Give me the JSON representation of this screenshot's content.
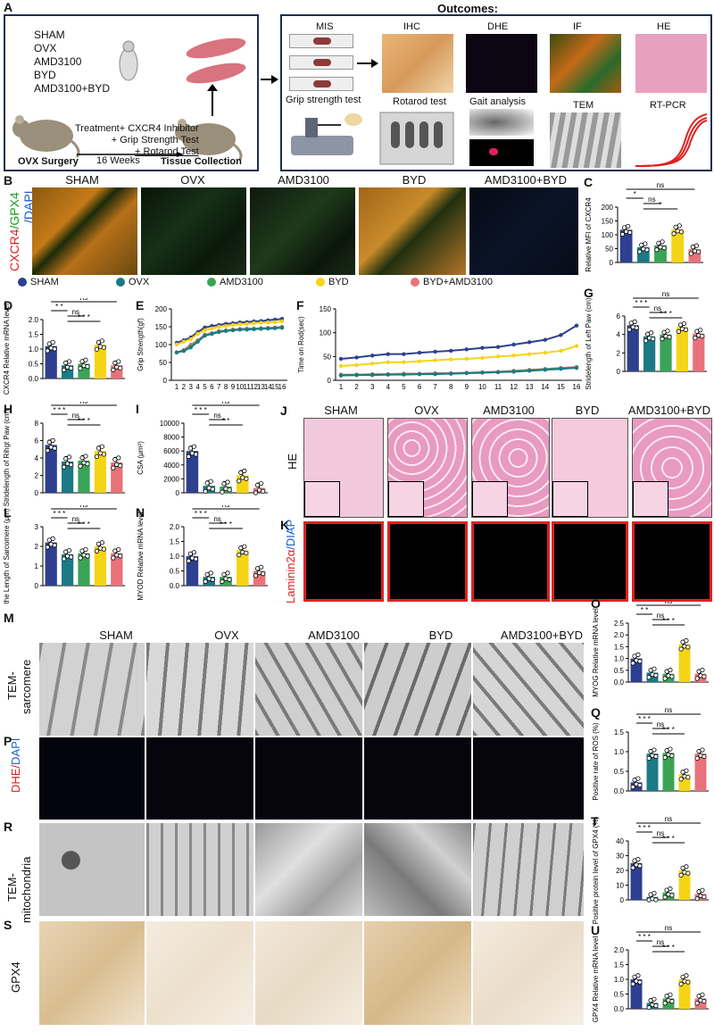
{
  "panels": {
    "A": "A",
    "B": "B",
    "C": "C",
    "D": "D",
    "E": "E",
    "F": "F",
    "G": "G",
    "H": "H",
    "I": "I",
    "J": "J",
    "K": "K",
    "L": "L",
    "M": "M",
    "N": "N",
    "O": "O",
    "P": "P",
    "Q": "Q",
    "R": "R",
    "S": "S",
    "T": "T",
    "U": "U"
  },
  "panelA": {
    "outcomes_title": "Outcomes:",
    "groups": [
      "SHAM",
      "OVX",
      "AMD3100",
      "BYD",
      "AMD3100+BYD"
    ],
    "treatment": "Treatment+ CXCR4 Inhibitor",
    "grip": "+ Grip Strength Test",
    "rotarod": "+ Rotarod Test",
    "weeks": "16 Weeks",
    "ovx_surgery": "OVX Surgery",
    "tissue": "Tissue Collection",
    "outcome_labels": [
      "MIS",
      "IHC",
      "DHE",
      "IF",
      "HE",
      "Grip strength test",
      "Rotarod test",
      "Gait analysis",
      "TEM",
      "RT-PCR"
    ]
  },
  "groups": [
    "SHAM",
    "OVX",
    "AMD3100",
    "BYD",
    "AMD3100+BYD"
  ],
  "legend": {
    "items": [
      {
        "name": "SHAM",
        "color": "#2e3f8f"
      },
      {
        "name": "OVX",
        "color": "#1a7a85"
      },
      {
        "name": "AMD3100",
        "color": "#3aa356"
      },
      {
        "name": "BYD",
        "color": "#f5d416"
      },
      {
        "name": "BYD+AMD3100",
        "color": "#e8727a"
      }
    ]
  },
  "rowlabels": {
    "B_red": "CXCR4",
    "B_green": "/GPX4",
    "B_blue": "/DAPI",
    "HE": "HE",
    "K_red": "Laminin2α",
    "K_blue": "/DIAP",
    "M": "TEM-",
    "M2": "sarcomere",
    "P_red": "DHE/",
    "P_blue": "DAPI",
    "R1": "TEM-",
    "R2": "mitochondria",
    "S": "GPX4"
  },
  "chart_data": [
    {
      "panel": "C",
      "type": "bar",
      "ylabel": "Relative MFI of CXCR4",
      "categories": [
        "SHAM",
        "OVX",
        "AMD3100",
        "BYD",
        "AMD3100+BYD"
      ],
      "values": [
        118,
        55,
        62,
        120,
        48
      ],
      "ylim": [
        0,
        200
      ],
      "ticks": [
        "0",
        "50",
        "100",
        "150",
        "200"
      ],
      "sig": [
        {
          "a": 0,
          "b": 1,
          "t": "*"
        },
        {
          "a": 1,
          "b": 2,
          "t": "ns"
        },
        {
          "a": 1,
          "b": 3,
          "t": "*"
        },
        {
          "a": 0,
          "b": 4,
          "t": "ns"
        }
      ]
    },
    {
      "panel": "D",
      "type": "bar",
      "ylabel": "CXCR4 Relative mRNA level",
      "categories": [
        "SHAM",
        "OVX",
        "AMD3100",
        "BYD",
        "AMD3100+BYD"
      ],
      "values": [
        1.1,
        0.45,
        0.5,
        1.15,
        0.45
      ],
      "ylim": [
        0,
        2.0
      ],
      "ticks": [
        "0.0",
        "0.5",
        "1.0",
        "1.5",
        "2.0"
      ],
      "sig": [
        {
          "a": 0,
          "b": 1,
          "t": "* *"
        },
        {
          "a": 1,
          "b": 2,
          "t": "ns"
        },
        {
          "a": 1,
          "b": 3,
          "t": "* * *"
        },
        {
          "a": 0,
          "b": 4,
          "t": "ns"
        }
      ]
    },
    {
      "panel": "E",
      "type": "line",
      "ylabel": "Grip Strength(gf)",
      "x": [
        1,
        2,
        3,
        4,
        5,
        6,
        7,
        8,
        9,
        10,
        11,
        12,
        13,
        14,
        15,
        16
      ],
      "ylim": [
        0,
        200
      ],
      "ticks": [
        "0",
        "50",
        "100",
        "150",
        "200"
      ],
      "series": [
        {
          "color": "#2e3f8f",
          "values": [
            105,
            112,
            120,
            135,
            148,
            152,
            155,
            158,
            160,
            162,
            163,
            165,
            166,
            168,
            170,
            172
          ]
        },
        {
          "color": "#f5d416",
          "values": [
            100,
            108,
            115,
            130,
            140,
            145,
            150,
            152,
            155,
            157,
            158,
            160,
            161,
            162,
            163,
            165
          ]
        },
        {
          "color": "#e8727a",
          "values": [
            78,
            85,
            100,
            112,
            128,
            132,
            138,
            140,
            142,
            144,
            145,
            145,
            146,
            147,
            148,
            150
          ]
        },
        {
          "color": "#3aa356",
          "values": [
            78,
            83,
            95,
            110,
            126,
            130,
            136,
            139,
            141,
            142,
            143,
            144,
            145,
            145,
            146,
            148
          ]
        },
        {
          "color": "#1a7a85",
          "values": [
            78,
            82,
            92,
            108,
            125,
            130,
            135,
            138,
            140,
            142,
            142,
            143,
            144,
            145,
            146,
            147
          ]
        }
      ]
    },
    {
      "panel": "F",
      "type": "line",
      "ylabel": "Time on Rod(sec)",
      "x": [
        1,
        2,
        3,
        4,
        5,
        6,
        7,
        8,
        9,
        10,
        11,
        12,
        13,
        14,
        15,
        16
      ],
      "ylim": [
        0,
        150
      ],
      "ticks": [
        "0",
        "50",
        "100",
        "150"
      ],
      "series": [
        {
          "color": "#2e3f8f",
          "values": [
            45,
            48,
            52,
            55,
            55,
            58,
            60,
            62,
            65,
            68,
            70,
            75,
            80,
            85,
            95,
            115
          ]
        },
        {
          "color": "#f5d416",
          "values": [
            30,
            32,
            35,
            38,
            38,
            40,
            42,
            44,
            45,
            47,
            50,
            52,
            55,
            58,
            62,
            72
          ]
        },
        {
          "color": "#e8727a",
          "values": [
            12,
            12,
            13,
            13,
            14,
            14,
            15,
            15,
            16,
            17,
            18,
            20,
            22,
            24,
            26,
            28
          ]
        },
        {
          "color": "#3aa356",
          "values": [
            11,
            11,
            12,
            12,
            13,
            13,
            14,
            14,
            15,
            16,
            17,
            19,
            21,
            23,
            25,
            27
          ]
        },
        {
          "color": "#1a7a85",
          "values": [
            10,
            11,
            11,
            12,
            12,
            13,
            13,
            14,
            15,
            16,
            17,
            18,
            20,
            22,
            24,
            26
          ]
        }
      ]
    },
    {
      "panel": "G",
      "type": "bar",
      "ylabel": "Stridelength of Left Paw (cm)",
      "categories": [
        "SHAM",
        "OVX",
        "AMD3100",
        "BYD",
        "AMD3100+BYD"
      ],
      "values": [
        5.0,
        3.8,
        4.0,
        4.8,
        4.1
      ],
      "ylim": [
        0,
        6
      ],
      "ticks": [
        "0",
        "2",
        "4",
        "6"
      ],
      "sig": [
        {
          "a": 0,
          "b": 1,
          "t": "* * *"
        },
        {
          "a": 1,
          "b": 2,
          "t": "ns"
        },
        {
          "a": 1,
          "b": 3,
          "t": "* * *"
        },
        {
          "a": 0,
          "b": 4,
          "t": "ns"
        }
      ]
    },
    {
      "panel": "H",
      "type": "bar",
      "ylabel": "Stridelength of Rihgt Paw (cm)",
      "categories": [
        "SHAM",
        "OVX",
        "AMD3100",
        "BYD",
        "AMD3100+BYD"
      ],
      "values": [
        5.5,
        3.6,
        3.7,
        4.8,
        3.5
      ],
      "ylim": [
        0,
        8
      ],
      "ticks": [
        "0",
        "2",
        "4",
        "6",
        "8"
      ],
      "sig": [
        {
          "a": 0,
          "b": 1,
          "t": "* * *"
        },
        {
          "a": 1,
          "b": 2,
          "t": "ns"
        },
        {
          "a": 1,
          "b": 3,
          "t": "* * *"
        },
        {
          "a": 0,
          "b": 4,
          "t": "ns"
        }
      ]
    },
    {
      "panel": "I",
      "type": "bar",
      "ylabel": "CSA (μm²)",
      "categories": [
        "SHAM",
        "OVX",
        "AMD3100",
        "BYD",
        "AMD3100+BYD"
      ],
      "values": [
        6000,
        1000,
        900,
        2500,
        700
      ],
      "ylim": [
        0,
        10000
      ],
      "ticks": [
        "0",
        "2000",
        "4000",
        "6000",
        "8000",
        "10000"
      ],
      "sig": [
        {
          "a": 0,
          "b": 1,
          "t": "* * *"
        },
        {
          "a": 1,
          "b": 2,
          "t": "ns"
        },
        {
          "a": 1,
          "b": 3,
          "t": "* *"
        },
        {
          "a": 0,
          "b": 4,
          "t": "ns"
        }
      ]
    },
    {
      "panel": "L",
      "type": "bar",
      "ylabel": "the Length of Sarcomere (μm)",
      "categories": [
        "SHAM",
        "OVX",
        "AMD3100",
        "BYD",
        "AMD3100+BYD"
      ],
      "values": [
        2.2,
        1.6,
        1.65,
        2.0,
        1.65
      ],
      "ylim": [
        0,
        3
      ],
      "ticks": [
        "0",
        "1",
        "2",
        "3"
      ],
      "sig": [
        {
          "a": 0,
          "b": 1,
          "t": "* * *"
        },
        {
          "a": 1,
          "b": 2,
          "t": "ns"
        },
        {
          "a": 1,
          "b": 3,
          "t": "* * *"
        },
        {
          "a": 0,
          "b": 4,
          "t": "ns"
        }
      ]
    },
    {
      "panel": "N",
      "type": "bar",
      "ylabel": "MYOD Relative mRNA level",
      "categories": [
        "SHAM",
        "OVX",
        "AMD3100",
        "BYD",
        "AMD3100+BYD"
      ],
      "values": [
        1.0,
        0.3,
        0.3,
        1.2,
        0.5
      ],
      "ylim": [
        0,
        2.0
      ],
      "ticks": [
        "0.0",
        "0.5",
        "1.0",
        "1.5",
        "2.0"
      ],
      "sig": [
        {
          "a": 0,
          "b": 1,
          "t": "* * *"
        },
        {
          "a": 1,
          "b": 2,
          "t": "ns"
        },
        {
          "a": 1,
          "b": 3,
          "t": "* * *"
        },
        {
          "a": 0,
          "b": 4,
          "t": "ns"
        }
      ]
    },
    {
      "panel": "O",
      "type": "bar",
      "ylabel": "MYOG Relative mRNA level",
      "categories": [
        "SHAM",
        "OVX",
        "AMD3100",
        "BYD",
        "AMD3100+BYD"
      ],
      "values": [
        1.0,
        0.4,
        0.35,
        1.6,
        0.35
      ],
      "ylim": [
        0,
        2.5
      ],
      "ticks": [
        "0.0",
        "0.5",
        "1.0",
        "1.5",
        "2.0",
        "2.5"
      ],
      "sig": [
        {
          "a": 0,
          "b": 1,
          "t": "* *"
        },
        {
          "a": 1,
          "b": 2,
          "t": "ns"
        },
        {
          "a": 1,
          "b": 3,
          "t": "* * *"
        },
        {
          "a": 0,
          "b": 4,
          "t": "ns"
        }
      ]
    },
    {
      "panel": "Q",
      "type": "bar",
      "ylabel": "Positive rate of ROS (%)",
      "categories": [
        "SHAM",
        "OVX",
        "AMD3100",
        "BYD",
        "AMD3100+BYD"
      ],
      "values": [
        0.22,
        0.95,
        0.97,
        0.42,
        0.95
      ],
      "ylim": [
        0,
        1.5
      ],
      "ticks": [
        "0.0",
        "0.5",
        "1.0",
        "1.5"
      ],
      "sig": [
        {
          "a": 0,
          "b": 1,
          "t": "* * *"
        },
        {
          "a": 1,
          "b": 2,
          "t": "ns"
        },
        {
          "a": 1,
          "b": 3,
          "t": "* * *"
        },
        {
          "a": 0,
          "b": 4,
          "t": "ns"
        }
      ]
    },
    {
      "panel": "T",
      "type": "bar",
      "ylabel": "Positive protein level of GPX4 (%)",
      "categories": [
        "SHAM",
        "OVX",
        "AMD3100",
        "BYD",
        "AMD3100+BYD"
      ],
      "values": [
        25,
        2,
        5,
        20,
        4
      ],
      "ylim": [
        0,
        40
      ],
      "ticks": [
        "0",
        "10",
        "20",
        "30",
        "40"
      ],
      "sig": [
        {
          "a": 0,
          "b": 1,
          "t": "* * *"
        },
        {
          "a": 1,
          "b": 2,
          "t": "ns"
        },
        {
          "a": 1,
          "b": 3,
          "t": "* * *"
        },
        {
          "a": 0,
          "b": 4,
          "t": "ns"
        }
      ]
    },
    {
      "panel": "U",
      "type": "bar",
      "ylabel": "GPX4 Relative mRNA level",
      "categories": [
        "SHAM",
        "OVX",
        "AMD3100",
        "BYD",
        "AMD3100+BYD"
      ],
      "values": [
        1.0,
        0.2,
        0.35,
        1.0,
        0.35
      ],
      "ylim": [
        0,
        2.0
      ],
      "ticks": [
        "0.0",
        "0.5",
        "1.0",
        "1.5",
        "2.0"
      ],
      "sig": [
        {
          "a": 0,
          "b": 1,
          "t": "* * *"
        },
        {
          "a": 1,
          "b": 2,
          "t": "ns"
        },
        {
          "a": 1,
          "b": 3,
          "t": "* * *"
        },
        {
          "a": 0,
          "b": 4,
          "t": "ns"
        }
      ]
    }
  ],
  "colors": [
    "#2e3f8f",
    "#1a7a85",
    "#3aa356",
    "#f5d416",
    "#e8727a"
  ]
}
